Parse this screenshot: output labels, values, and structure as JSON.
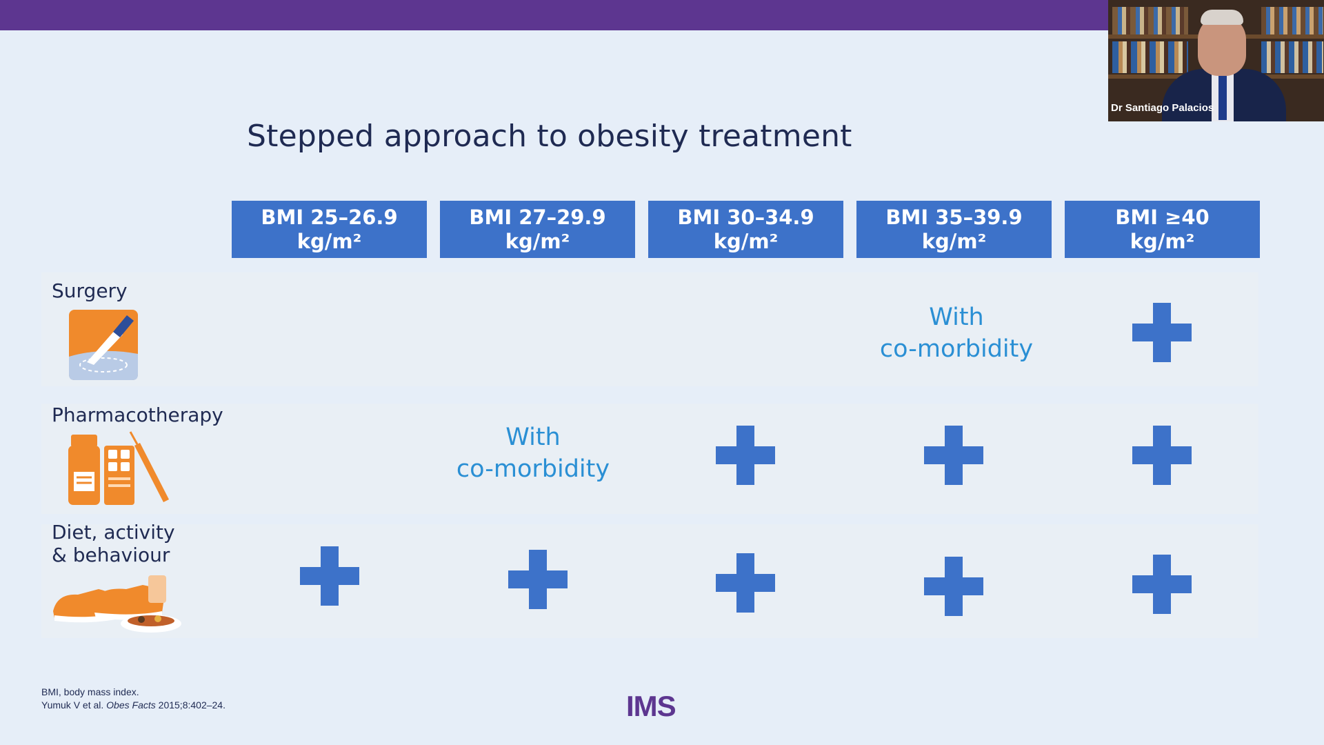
{
  "slide": {
    "title": "Stepped approach to obesity treatment",
    "headers": [
      {
        "line1": "BMI 25–26.9",
        "line2": "kg/m²"
      },
      {
        "line1": "BMI 27–29.9",
        "line2": "kg/m²"
      },
      {
        "line1": "BMI 30–34.9",
        "line2": "kg/m²"
      },
      {
        "line1": "BMI 35–39.9",
        "line2": "kg/m²"
      },
      {
        "line1": "BMI ≥40",
        "line2": "kg/m²"
      }
    ],
    "rows": {
      "surgery": {
        "label": "Surgery",
        "comorbidity_line1": "With",
        "comorbidity_line2": "co-morbidity"
      },
      "pharmacotherapy": {
        "label": "Pharmacotherapy",
        "comorbidity_line1": "With",
        "comorbidity_line2": "co-morbidity"
      },
      "diet": {
        "label_line1": "Diet, activity",
        "label_line2": "& behaviour"
      }
    },
    "footnote_line1": "BMI, body mass index.",
    "footnote_ref_authors": "Yumuk V et al.",
    "footnote_ref_journal": "Obes Facts",
    "footnote_ref_rest": "2015;8:402–24.",
    "logo": "IMS"
  },
  "video": {
    "speaker_name": "Dr Santiago Palacios"
  },
  "colors": {
    "top_bar": "#5d3690",
    "header": "#3d72c9",
    "plus": "#3d72c9",
    "comorbidity_text": "#2a8fd4",
    "background": "#e6eef8"
  }
}
